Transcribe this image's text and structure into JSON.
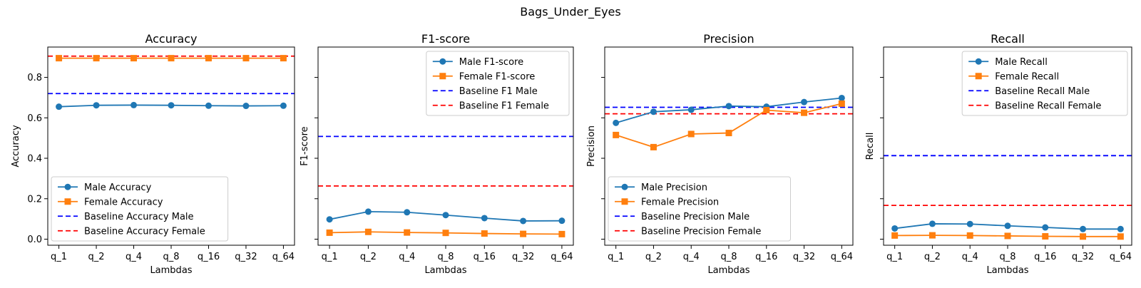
{
  "suptitle": "Bags_Under_Eyes",
  "colors": {
    "male": "#1f77b4",
    "female": "#ff7f0e",
    "baseline_male": "#0000ff",
    "baseline_female": "#ff0000"
  },
  "chart_data": [
    {
      "type": "line",
      "title": "Accuracy",
      "xlabel": "Lambdas",
      "ylabel": "Accuracy",
      "categories": [
        "q_1",
        "q_2",
        "q_4",
        "q_8",
        "q_16",
        "q_32",
        "q_64"
      ],
      "ylim": [
        -0.03,
        0.95
      ],
      "yticks": [
        "0.0",
        "0.2",
        "0.4",
        "0.6",
        "0.8"
      ],
      "show_ytick_labels": true,
      "legend_position": "lower-left",
      "series": [
        {
          "name": "Male Accuracy",
          "values": [
            0.655,
            0.662,
            0.663,
            0.662,
            0.66,
            0.659,
            0.66
          ]
        },
        {
          "name": "Female Accuracy",
          "values": [
            0.895,
            0.895,
            0.895,
            0.895,
            0.895,
            0.895,
            0.895
          ]
        }
      ],
      "baselines": [
        {
          "name": "Baseline Accuracy Male",
          "value": 0.72
        },
        {
          "name": "Baseline Accuracy Female",
          "value": 0.905
        }
      ]
    },
    {
      "type": "line",
      "title": "F1-score",
      "xlabel": "Lambdas",
      "ylabel": "F1-score",
      "categories": [
        "q_1",
        "q_2",
        "q_4",
        "q_8",
        "q_16",
        "q_32",
        "q_64"
      ],
      "ylim": [
        -0.03,
        0.95
      ],
      "yticks": [
        "0.0",
        "0.2",
        "0.4",
        "0.6",
        "0.8"
      ],
      "show_ytick_labels": false,
      "legend_position": "top-right",
      "series": [
        {
          "name": "Male F1-score",
          "values": [
            0.098,
            0.136,
            0.133,
            0.119,
            0.104,
            0.09,
            0.091
          ]
        },
        {
          "name": "Female F1-score",
          "values": [
            0.032,
            0.036,
            0.033,
            0.031,
            0.028,
            0.026,
            0.025
          ]
        }
      ],
      "baselines": [
        {
          "name": "Baseline F1 Male",
          "value": 0.508
        },
        {
          "name": "Baseline F1 Female",
          "value": 0.263
        }
      ]
    },
    {
      "type": "line",
      "title": "Precision",
      "xlabel": "Lambdas",
      "ylabel": "Precision",
      "categories": [
        "q_1",
        "q_2",
        "q_4",
        "q_8",
        "q_16",
        "q_32",
        "q_64"
      ],
      "ylim": [
        -0.03,
        0.95
      ],
      "yticks": [
        "0.0",
        "0.2",
        "0.4",
        "0.6",
        "0.8"
      ],
      "show_ytick_labels": false,
      "legend_position": "lower-left",
      "series": [
        {
          "name": "Male Precision",
          "values": [
            0.575,
            0.63,
            0.64,
            0.658,
            0.655,
            0.678,
            0.698
          ]
        },
        {
          "name": "Female Precision",
          "values": [
            0.515,
            0.455,
            0.52,
            0.525,
            0.638,
            0.625,
            0.67
          ]
        }
      ],
      "baselines": [
        {
          "name": "Baseline Precision Male",
          "value": 0.652
        },
        {
          "name": "Baseline Precision Female",
          "value": 0.62
        }
      ]
    },
    {
      "type": "line",
      "title": "Recall",
      "xlabel": "Lambdas",
      "ylabel": "Recall",
      "categories": [
        "q_1",
        "q_2",
        "q_4",
        "q_8",
        "q_16",
        "q_32",
        "q_64"
      ],
      "ylim": [
        -0.03,
        0.95
      ],
      "yticks": [
        "0.0",
        "0.2",
        "0.4",
        "0.6",
        "0.8"
      ],
      "show_ytick_labels": false,
      "legend_position": "top-right",
      "series": [
        {
          "name": "Male Recall",
          "values": [
            0.053,
            0.076,
            0.075,
            0.066,
            0.058,
            0.05,
            0.05
          ]
        },
        {
          "name": "Female Recall",
          "values": [
            0.018,
            0.019,
            0.018,
            0.016,
            0.014,
            0.013,
            0.013
          ]
        }
      ],
      "baselines": [
        {
          "name": "Baseline Recall Male",
          "value": 0.413
        },
        {
          "name": "Baseline Recall Female",
          "value": 0.167
        }
      ]
    }
  ]
}
